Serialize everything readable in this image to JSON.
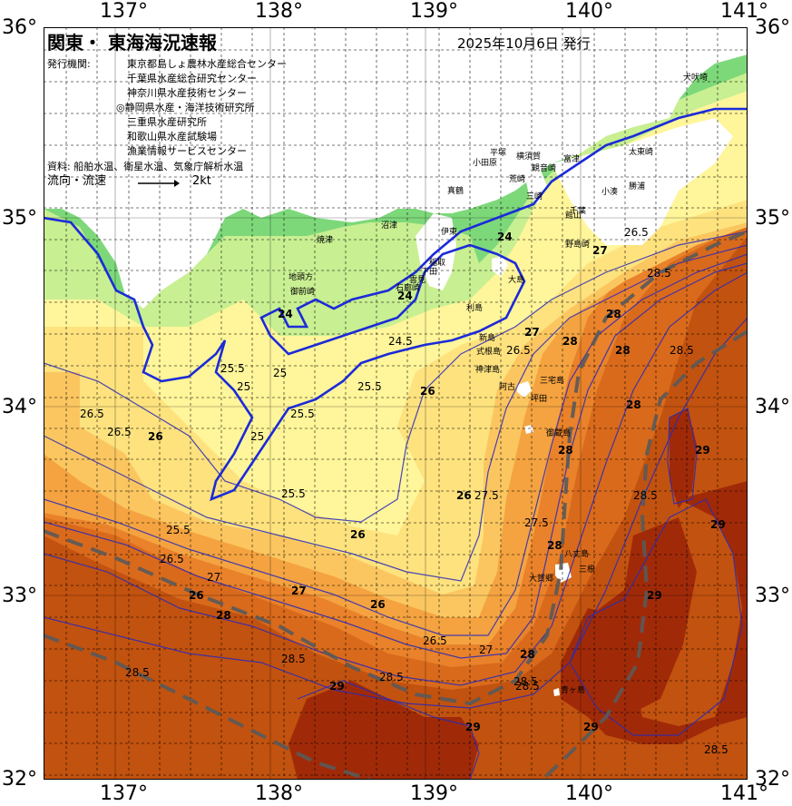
{
  "header": {
    "title": "関東・ 東海海況速報",
    "issue_date": "2025年10月6日 発行",
    "issuer_label": "発行機関:",
    "issuers": [
      "東京都島しょ農林水産総合センター",
      "千葉県水産総合研究センター",
      "神奈川県水産技術センター",
      "◎静岡県水産・海洋技術研究所",
      "三重県水産研究所",
      "和歌山県水産試験場",
      "漁業情報サービスセンター"
    ],
    "source_label": "資料: 船舶水温、衛星水温、気象庁解析水温",
    "current_label": "流向・流速",
    "current_scale": "2kt"
  },
  "axes": {
    "lon_labels": [
      "137°",
      "138°",
      "139°",
      "140°",
      "141°"
    ],
    "lat_labels": [
      "36°",
      "35°",
      "34°",
      "33°",
      "32°"
    ]
  },
  "colors": {
    "land": "#ffffff",
    "t_lt24": "#7dd87a",
    "t_24_25": "#c8ef92",
    "t_25_255": "#fff59a",
    "t_255_26": "#fde27e",
    "t_26_265": "#fbc660",
    "t_265_27": "#f4a340",
    "t_27_28": "#e9822a",
    "t_28_285": "#d96a1c",
    "t_285_29": "#c2520f",
    "t_gt29": "#a02a08",
    "isotherm_25": "#1b2bd8",
    "kuroshio": "#5a5a5a"
  },
  "places": [
    {
      "name": "犬吠埼"
    },
    {
      "name": "太東崎"
    },
    {
      "name": "勝浦"
    },
    {
      "name": "小湊"
    },
    {
      "name": "千葉"
    },
    {
      "name": "富津"
    },
    {
      "name": "館山"
    },
    {
      "name": "野島崎"
    },
    {
      "name": "横須賀"
    },
    {
      "name": "観音崎"
    },
    {
      "name": "三崎"
    },
    {
      "name": "荒崎"
    },
    {
      "name": "平塚"
    },
    {
      "name": "小田原"
    },
    {
      "name": "真鶴"
    },
    {
      "name": "伊東"
    },
    {
      "name": "稲取"
    },
    {
      "name": "下田"
    },
    {
      "name": "石廊崎"
    },
    {
      "name": "雲見"
    },
    {
      "name": "沼津"
    },
    {
      "name": "焼津"
    },
    {
      "name": "地頭方"
    },
    {
      "name": "御前崎"
    },
    {
      "name": "大島"
    },
    {
      "name": "利島"
    },
    {
      "name": "新島"
    },
    {
      "name": "式根島"
    },
    {
      "name": "神津島"
    },
    {
      "name": "三宅島"
    },
    {
      "name": "阿古"
    },
    {
      "name": "坪田"
    },
    {
      "name": "御蔵島"
    },
    {
      "name": "八丈島"
    },
    {
      "name": "大賀郷"
    },
    {
      "name": "三根"
    },
    {
      "name": "青ヶ島"
    }
  ],
  "isotherm_labels": [
    {
      "text": "26.5"
    },
    {
      "text": "26.5"
    },
    {
      "text": "26"
    },
    {
      "text": "25.5"
    },
    {
      "text": "25"
    },
    {
      "text": "25"
    },
    {
      "text": "25.5"
    },
    {
      "text": "25.5"
    },
    {
      "text": "25"
    },
    {
      "text": "26"
    },
    {
      "text": "25.5"
    },
    {
      "text": "25.5"
    },
    {
      "text": "26"
    },
    {
      "text": "26.5"
    },
    {
      "text": "26"
    },
    {
      "text": "27"
    },
    {
      "text": "27"
    },
    {
      "text": "26.5"
    },
    {
      "text": "26"
    },
    {
      "text": "27"
    },
    {
      "text": "28"
    },
    {
      "text": "28"
    },
    {
      "text": "28.5"
    },
    {
      "text": "28.5"
    },
    {
      "text": "28.5"
    },
    {
      "text": "28.5"
    },
    {
      "text": "29"
    },
    {
      "text": "29"
    },
    {
      "text": "29"
    },
    {
      "text": "29"
    },
    {
      "text": "29"
    },
    {
      "text": "29"
    },
    {
      "text": "28.5"
    },
    {
      "text": "28"
    },
    {
      "text": "28"
    },
    {
      "text": "28.5"
    },
    {
      "text": "28"
    },
    {
      "text": "28"
    },
    {
      "text": "27.5"
    },
    {
      "text": "27.5"
    },
    {
      "text": "26"
    },
    {
      "text": "27"
    },
    {
      "text": "28"
    },
    {
      "text": "28.5"
    },
    {
      "text": "24"
    },
    {
      "text": "24"
    },
    {
      "text": "24.5"
    },
    {
      "text": "24"
    },
    {
      "text": "27"
    },
    {
      "text": "26.5"
    },
    {
      "text": "28"
    },
    {
      "text": "26.5"
    },
    {
      "text": "28.5"
    },
    {
      "text": "28.5"
    }
  ]
}
